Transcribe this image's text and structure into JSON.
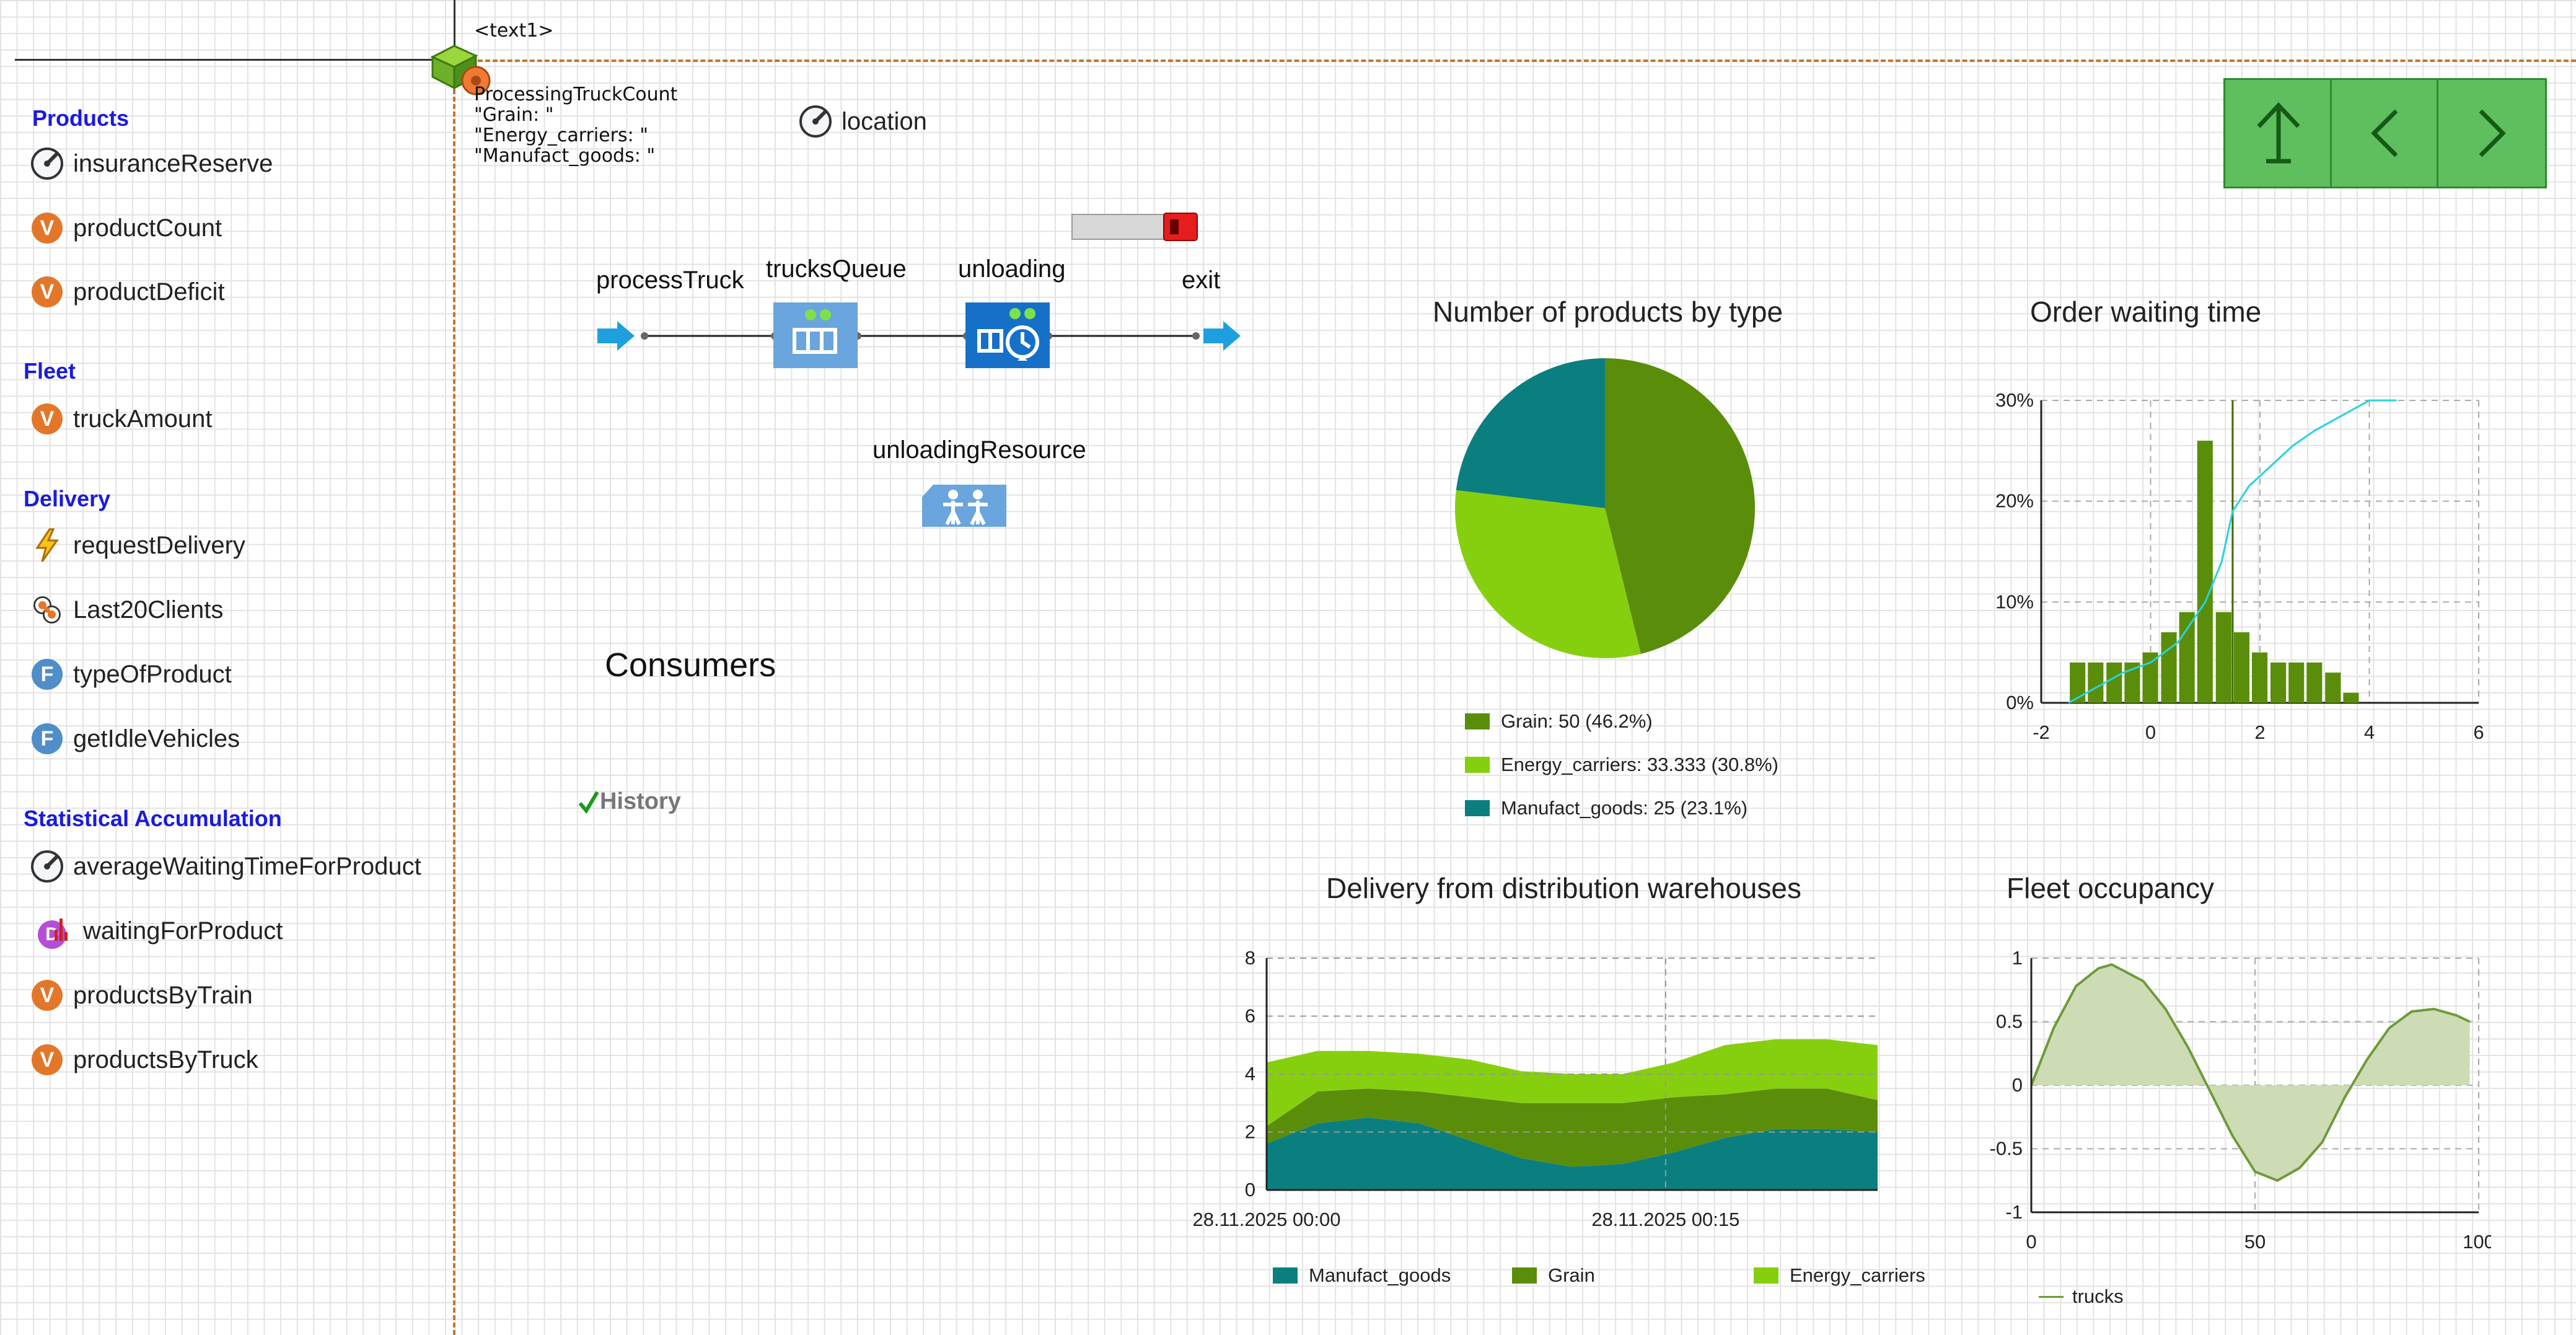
{
  "canvas": {
    "text_object": "<text1>",
    "status_lines": [
      "ProcessingTruckCount",
      "\"Grain: \"",
      "\"Energy_carriers: \"",
      "\"Manufact_goods: \""
    ],
    "location_label": "location"
  },
  "sidebar": {
    "sections": [
      {
        "title": "Products",
        "items": [
          {
            "label": "insuranceReserve",
            "icon": "gauge-icon"
          },
          {
            "label": "productCount",
            "icon": "variable-icon"
          },
          {
            "label": "productDeficit",
            "icon": "variable-icon"
          }
        ]
      },
      {
        "title": "Fleet",
        "items": [
          {
            "label": "truckAmount",
            "icon": "variable-icon"
          }
        ]
      },
      {
        "title": "Delivery",
        "items": [
          {
            "label": "requestDelivery",
            "icon": "event-icon"
          },
          {
            "label": "Last20Clients",
            "icon": "collection-icon"
          },
          {
            "label": "typeOfProduct",
            "icon": "function-icon"
          },
          {
            "label": "getIdleVehicles",
            "icon": "function-icon"
          }
        ]
      },
      {
        "title": "Statistical Accumulation",
        "items": [
          {
            "label": "averageWaitingTimeForProduct",
            "icon": "gauge-icon"
          },
          {
            "label": "waitingForProduct",
            "icon": "histogram-data-icon"
          },
          {
            "label": "productsByTrain",
            "icon": "variable-icon"
          },
          {
            "label": "productsByTruck",
            "icon": "variable-icon"
          }
        ]
      }
    ],
    "variable_letter": "V",
    "function_letter": "F",
    "histogram_letter": "D"
  },
  "flowchart": {
    "blocks": [
      {
        "label": "processTruck",
        "icon": "source-icon"
      },
      {
        "label": "trucksQueue",
        "icon": "queue-icon"
      },
      {
        "label": "unloading",
        "icon": "delay-icon"
      },
      {
        "label": "exit",
        "icon": "sink-icon"
      },
      {
        "label": "unloadingResource",
        "icon": "resource-pool-icon"
      }
    ]
  },
  "consumers_label": "Consumers",
  "history_label": "History",
  "nav": {
    "up_icon": "arrow-up-icon",
    "back_icon": "chevron-left-icon",
    "forward_icon": "chevron-right-icon"
  },
  "colors": {
    "grain": "#5a8d0a",
    "energy": "#86cf0f",
    "manufact": "#0b7f7f",
    "nav_green": "#5fbf5f",
    "fleet": "#6f9a3a",
    "cdf": "#27d3e0"
  },
  "chart_data": [
    {
      "id": "pie",
      "type": "pie",
      "title": "Number of products by type",
      "slices": [
        {
          "name": "Grain",
          "value": 50,
          "legend": "Grain: 50 (46.2%)"
        },
        {
          "name": "Energy_carriers",
          "value": 33.333,
          "legend": "Energy_carriers: 33.333 (30.8%)"
        },
        {
          "name": "Manufact_goods",
          "value": 25,
          "legend": "Manufact_goods: 25 (23.1%)"
        }
      ]
    },
    {
      "id": "histogram",
      "type": "bar",
      "title": "Order waiting time",
      "x_ticks": [
        "-2",
        "0",
        "2",
        "4",
        "6"
      ],
      "y_ticks": [
        "0%",
        "10%",
        "20%",
        "30%"
      ],
      "xlim": [
        -2,
        6
      ],
      "ylim": [
        0,
        30
      ],
      "bin_width": 0.33,
      "bins_start": [
        -1.5,
        -1.17,
        -0.83,
        -0.5,
        -0.17,
        0.17,
        0.5,
        0.83,
        1.17,
        1.5,
        1.83,
        2.17,
        2.5,
        2.83,
        3.17,
        3.5,
        3.83,
        4.17,
        4.5
      ],
      "values": [
        4,
        4,
        4,
        4,
        5,
        7,
        9,
        26,
        9,
        7,
        5,
        4,
        4,
        4,
        3,
        1,
        0,
        0,
        0
      ],
      "cdf_x": [
        -1.5,
        -1,
        -0.5,
        0,
        0.5,
        1,
        1.3,
        1.5,
        1.8,
        2.2,
        2.6,
        3,
        3.5,
        4,
        4.5
      ],
      "cdf_y": [
        0,
        1.5,
        3,
        4,
        6,
        10,
        14,
        19,
        21.5,
        23.5,
        25.5,
        27,
        28.5,
        30,
        31
      ]
    },
    {
      "id": "delivery",
      "type": "area",
      "title": "Delivery from distribution warehouses",
      "x_ticks": [
        "28.11.2025 00:00",
        "28.11.2025 00:15"
      ],
      "y_ticks": [
        "0",
        "2",
        "4",
        "6",
        "8"
      ],
      "ylim": [
        0,
        8
      ],
      "x": [
        0,
        2,
        4,
        6,
        8,
        10,
        12,
        14,
        16,
        18,
        20,
        22,
        24
      ],
      "series": [
        {
          "name": "Manufact_goods",
          "values": [
            1.6,
            2.3,
            2.5,
            2.3,
            1.7,
            1.1,
            0.8,
            0.9,
            1.3,
            1.8,
            2.1,
            2.1,
            2.0
          ]
        },
        {
          "name": "Grain",
          "values": [
            0.6,
            1.1,
            1.0,
            1.1,
            1.5,
            1.9,
            2.2,
            2.1,
            1.9,
            1.5,
            1.4,
            1.4,
            1.1
          ]
        },
        {
          "name": "Energy_carriers",
          "values": [
            2.2,
            1.4,
            1.3,
            1.3,
            1.3,
            1.1,
            1.0,
            1.0,
            1.2,
            1.7,
            1.7,
            1.7,
            1.9
          ]
        }
      ]
    },
    {
      "id": "fleet",
      "type": "area",
      "title": "Fleet occupancy",
      "x_ticks": [
        "0",
        "50",
        "100"
      ],
      "y_ticks": [
        "-1",
        "-0.5",
        "0",
        "0.5",
        "1"
      ],
      "xlim": [
        0,
        100
      ],
      "ylim": [
        -1,
        1
      ],
      "legend": "trucks",
      "x": [
        0,
        5,
        10,
        15,
        18,
        25,
        30,
        35,
        40,
        45,
        50,
        55,
        60,
        65,
        70,
        75,
        80,
        85,
        90,
        95,
        98
      ],
      "values": [
        0,
        0.45,
        0.78,
        0.92,
        0.95,
        0.82,
        0.6,
        0.3,
        -0.05,
        -0.4,
        -0.68,
        -0.75,
        -0.65,
        -0.45,
        -0.1,
        0.2,
        0.45,
        0.58,
        0.6,
        0.55,
        0.5
      ]
    }
  ]
}
